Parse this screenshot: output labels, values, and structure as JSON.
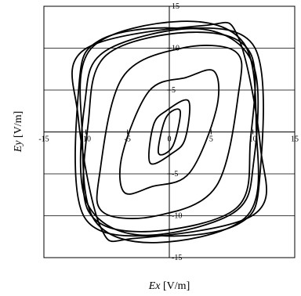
{
  "chart_data": {
    "type": "line",
    "title": "",
    "xlabel": {
      "symbol": "Ex",
      "unit": " [V/m]"
    },
    "ylabel": {
      "symbol": "Ey",
      "unit": " [V/m]"
    },
    "xlim": [
      -15,
      15
    ],
    "ylim": [
      -15,
      15
    ],
    "x_ticks": [
      -15,
      -10,
      -5,
      0,
      5,
      10,
      15
    ],
    "y_ticks": [
      -15,
      -10,
      -5,
      0,
      5,
      10,
      15
    ],
    "x_tick_labels": [
      "-15",
      "-10",
      "-5",
      "0",
      "5",
      "10",
      "15"
    ],
    "y_tick_labels": [
      "-15",
      "-10",
      "-5",
      "0",
      "5",
      "10",
      "15"
    ],
    "grid": "horizontal",
    "line_color": "#000000",
    "series": [
      {
        "points": [
          [
            1.3,
            2.5
          ],
          [
            0.4,
            -1.7
          ],
          [
            -1.3,
            -2.5
          ],
          [
            -0.4,
            1.7
          ],
          [
            1.3,
            2.5
          ]
        ]
      },
      {
        "points": [
          [
            2.3,
            3.7
          ],
          [
            1.9,
            -0.8
          ],
          [
            0.4,
            -2.5
          ],
          [
            -2.3,
            -3.7
          ],
          [
            -1.9,
            0.8
          ],
          [
            -0.4,
            2.5
          ],
          [
            2.3,
            3.7
          ]
        ]
      },
      {
        "points": [
          [
            5.4,
            7.2
          ],
          [
            5.6,
            2.6
          ],
          [
            2.4,
            -4.9
          ],
          [
            -2.0,
            -6.5
          ],
          [
            -5.4,
            -7.2
          ],
          [
            -5.6,
            -2.6
          ],
          [
            -2.4,
            4.9
          ],
          [
            2.0,
            6.5
          ],
          [
            5.4,
            7.2
          ]
        ]
      },
      {
        "points": [
          [
            7.9,
            9.6
          ],
          [
            8.3,
            4.8
          ],
          [
            5.6,
            -6.5
          ],
          [
            -1.5,
            -10.0
          ],
          [
            -7.9,
            -9.6
          ],
          [
            -8.3,
            -4.8
          ],
          [
            -5.6,
            6.5
          ],
          [
            1.5,
            10.0
          ],
          [
            7.9,
            9.6
          ]
        ]
      },
      {
        "points": [
          [
            9.7,
            9.4
          ],
          [
            9.7,
            -1.0
          ],
          [
            8.0,
            -9.1
          ],
          [
            -2.9,
            -11.9
          ],
          [
            -9.7,
            -9.4
          ],
          [
            -9.7,
            1.0
          ],
          [
            -7.5,
            9.2
          ],
          [
            2.9,
            11.9
          ],
          [
            9.7,
            9.4
          ]
        ]
      },
      {
        "points": [
          [
            10.0,
            8.1
          ],
          [
            10.1,
            -3.5
          ],
          [
            7.6,
            -9.7
          ],
          [
            -3.6,
            -12.3
          ],
          [
            -10.0,
            -8.1
          ],
          [
            -10.1,
            3.5
          ],
          [
            -7.6,
            9.7
          ],
          [
            3.6,
            12.3
          ],
          [
            10.0,
            8.1
          ]
        ]
      },
      {
        "points": [
          [
            8.9,
            10.6
          ],
          [
            10.4,
            0.5
          ],
          [
            9.4,
            -9.9
          ],
          [
            -1.4,
            -13.2
          ],
          [
            -8.9,
            -10.6
          ],
          [
            -10.4,
            -0.5
          ],
          [
            -9.4,
            9.9
          ],
          [
            1.4,
            13.2
          ],
          [
            8.9,
            10.6
          ]
        ]
      },
      {
        "points": [
          [
            8.2,
            11.4
          ],
          [
            10.9,
            -1.8
          ],
          [
            10.2,
            -9.8
          ],
          [
            -4.1,
            -12.7
          ],
          [
            -8.2,
            -11.4
          ],
          [
            -10.9,
            1.8
          ],
          [
            -10.2,
            9.8
          ],
          [
            4.1,
            12.7
          ],
          [
            8.2,
            11.4
          ]
        ]
      },
      {
        "points": [
          [
            10.2,
            10.1
          ],
          [
            10.8,
            -5.6
          ],
          [
            8.4,
            -10.9
          ],
          [
            -0.6,
            -12.4
          ],
          [
            -10.2,
            -10.1
          ],
          [
            -10.8,
            5.6
          ],
          [
            -8.4,
            10.9
          ],
          [
            0.6,
            12.4
          ],
          [
            10.2,
            10.1
          ]
        ]
      }
    ]
  }
}
